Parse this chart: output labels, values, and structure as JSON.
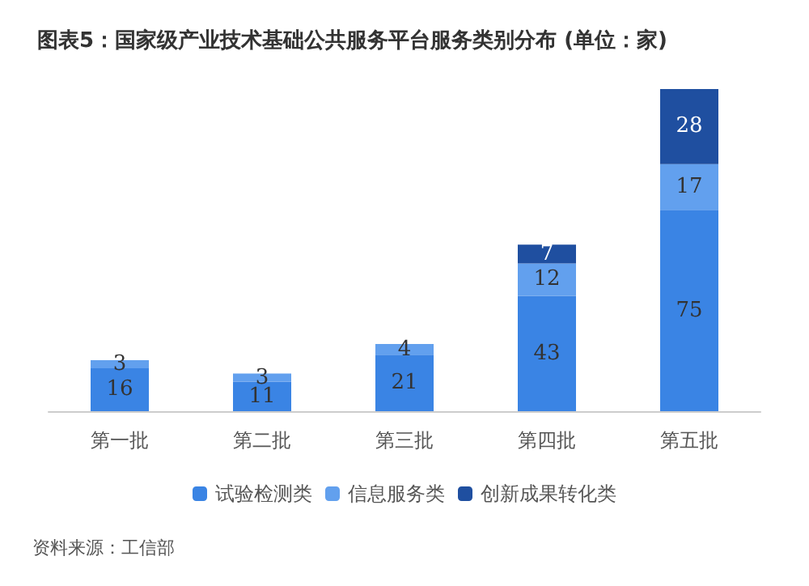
{
  "chart_data": {
    "type": "bar",
    "title": "图表5：国家级产业技术基础公共服务平台服务类别分布 (单位：家)",
    "categories": [
      "第一批",
      "第二批",
      "第三批",
      "第四批",
      "第五批"
    ],
    "stacked": true,
    "data_labels": true,
    "legend": "bottom",
    "grid": false,
    "series": [
      {
        "name": "试验检测类",
        "color": "#3a84e4",
        "values": [
          16,
          11,
          21,
          43,
          75
        ]
      },
      {
        "name": "信息服务类",
        "color": "#62a0ee",
        "values": [
          3,
          3,
          4,
          12,
          17
        ]
      },
      {
        "name": "创新成果转化类",
        "color": "#1f4fa0",
        "values": [
          null,
          null,
          null,
          7,
          28
        ]
      }
    ],
    "annotations": [
      "资料来源：工信部"
    ]
  }
}
